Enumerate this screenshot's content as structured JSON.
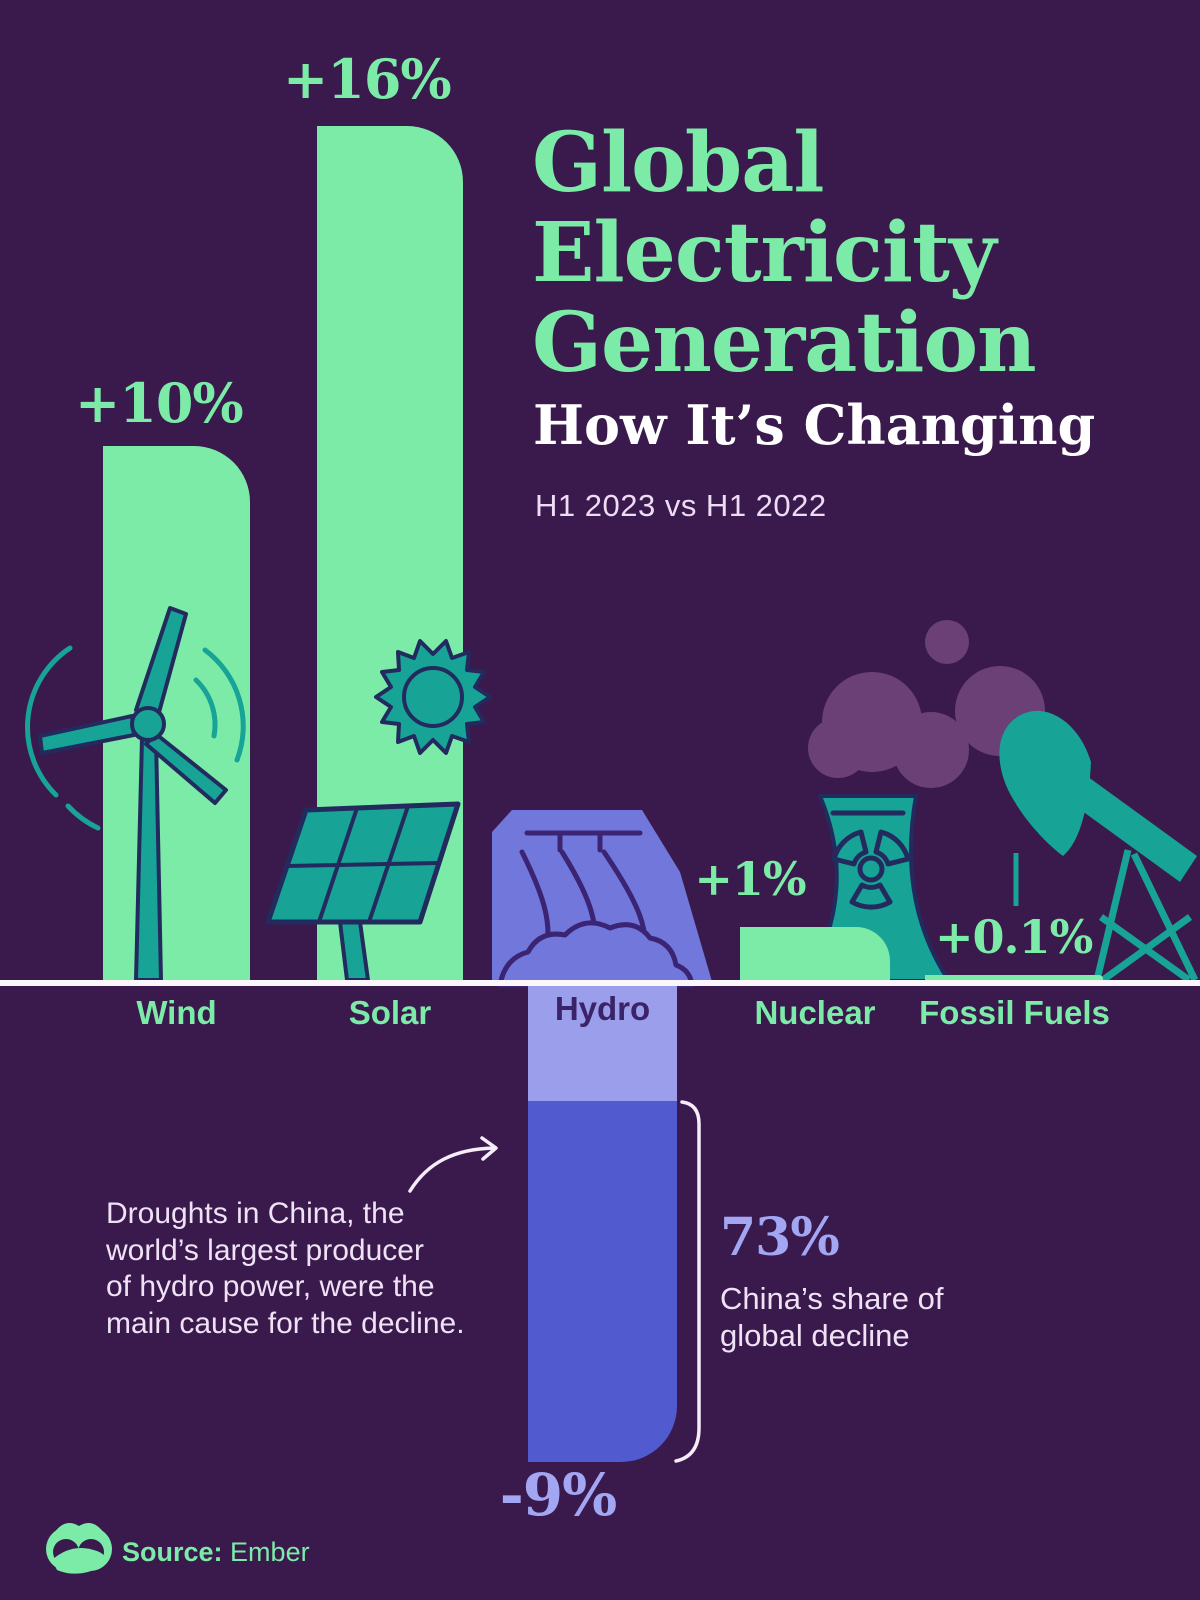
{
  "header": {
    "title_lines": [
      "Global",
      "Electricity",
      "Generation"
    ],
    "subtitle": "How It’s Changing",
    "period": "H1 2023 vs H1 2022"
  },
  "chart_data": {
    "type": "bar",
    "title": "Global Electricity Generation — How It’s Changing",
    "subtitle": "H1 2023 vs H1 2022",
    "categories": [
      "Wind",
      "Solar",
      "Hydro",
      "Nuclear",
      "Fossil Fuels"
    ],
    "values": [
      10,
      16,
      -9,
      1,
      0.1
    ],
    "value_labels": [
      "+10%",
      "+16%",
      "-9%",
      "+1%",
      "+0.1%"
    ],
    "unit": "percent change, H1 2023 vs H1 2022",
    "baseline": 0,
    "bar_colors": [
      "#7DEBA8",
      "#7DEBA8",
      "#515ACF",
      "#7DEBA8",
      "#7DEBA8"
    ],
    "negative_bar_top_band_color": "#9B9EEA",
    "grid": false,
    "legend": false
  },
  "annotation": {
    "lines": [
      "Droughts in China, the",
      "world’s largest producer",
      "of hydro power, were the",
      "main cause for the decline."
    ]
  },
  "callout": {
    "value": "73%",
    "lines": [
      "China’s share of",
      "global decline"
    ]
  },
  "footer": {
    "source_label": "Source:",
    "source_name": "Ember"
  },
  "icons": [
    "wind-turbine-icon",
    "sun-icon",
    "solar-panel-icon",
    "hydro-dam-icon",
    "nuclear-plant-icon",
    "smoke-clouds",
    "oil-pumpjack-icon",
    "curved-arrow-icon",
    "bracket",
    "visual-capitalist-logo"
  ],
  "colors": {
    "background": "#3A1A4D",
    "bar_green": "#7DEBA8",
    "icon_teal": "#17A395",
    "outline_navy": "#232A5E",
    "dam_blue": "#7177DB",
    "hydro_band": "#9B9EEA",
    "hydro_deep": "#515ACF",
    "smoke_purple": "#6A4077",
    "lavender_number": "#A2A6F3",
    "baseline_white": "#FBF5FC"
  }
}
